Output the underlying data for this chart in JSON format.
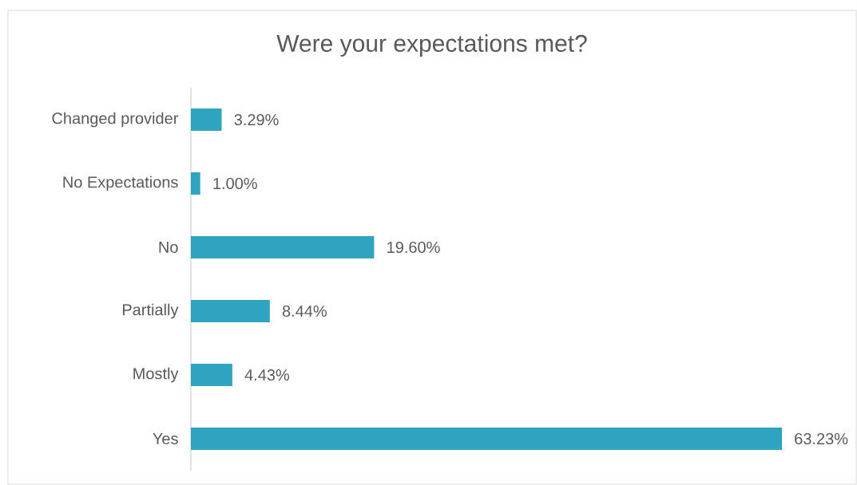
{
  "chart_data": {
    "type": "bar",
    "orientation": "horizontal",
    "title": "Were your expectations met?",
    "categories": [
      "Changed provider",
      "No Expectations",
      "No",
      "Partially",
      "Mostly",
      "Yes"
    ],
    "values": [
      3.29,
      1.0,
      19.6,
      8.44,
      4.43,
      63.23
    ],
    "value_labels": [
      "3.29%",
      "1.00%",
      "19.60%",
      "8.44%",
      "4.43%",
      "63.23%"
    ],
    "color": "#2ea4c0"
  }
}
